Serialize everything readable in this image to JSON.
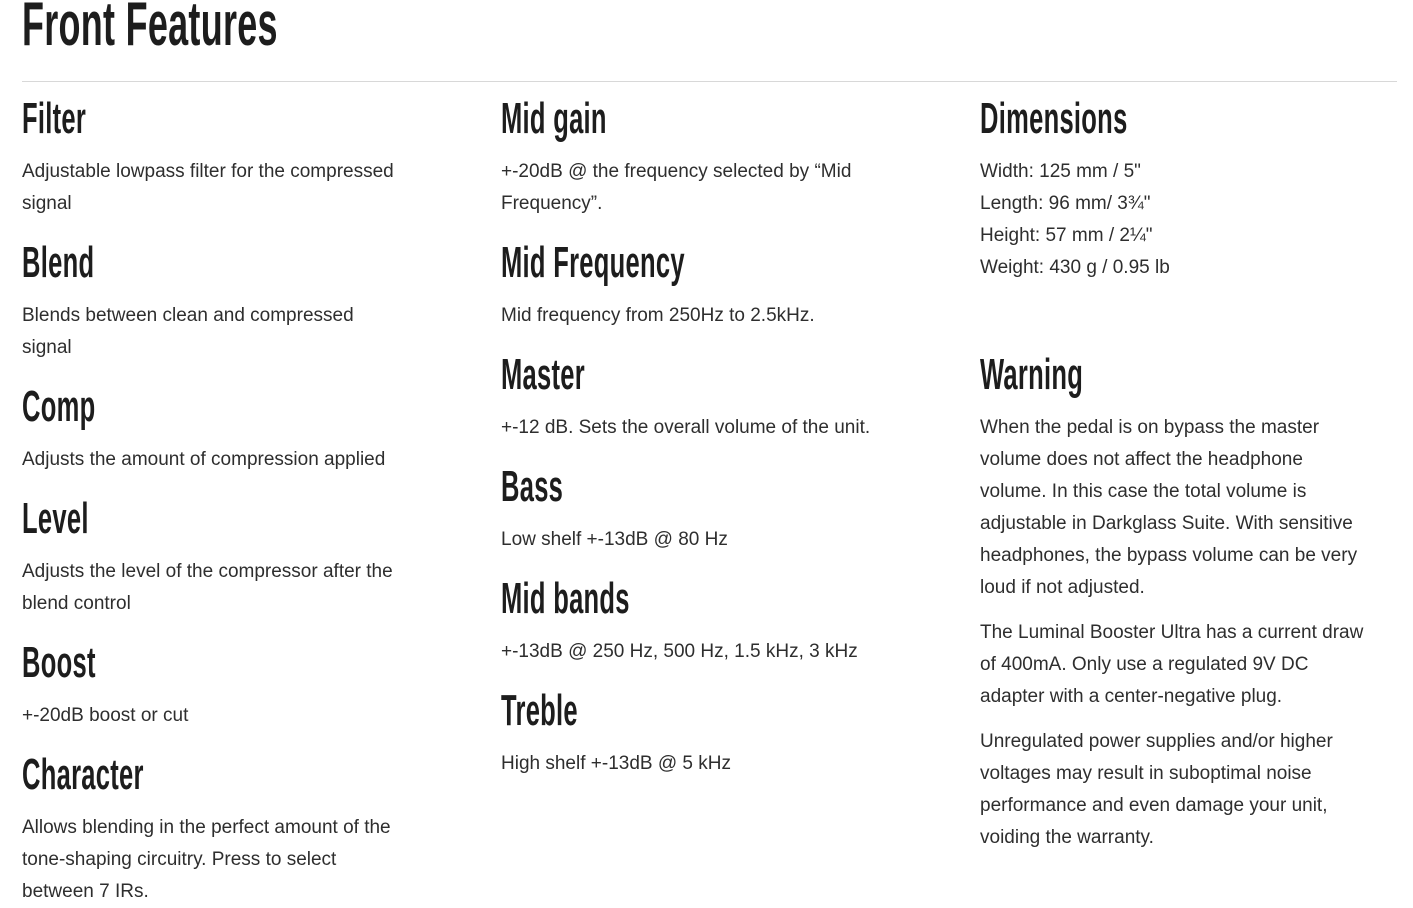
{
  "page": {
    "title": "Front Features"
  },
  "colors": {
    "heading": "#1d1d1d",
    "body": "#2e2e2e",
    "divider": "#d8d8d8",
    "background": "#ffffff"
  },
  "columns": [
    {
      "sections": [
        {
          "heading": "Filter",
          "paragraphs": [
            [
              "Adjustable lowpass filter for the compressed",
              "signal"
            ]
          ]
        },
        {
          "heading": "Blend",
          "paragraphs": [
            [
              "Blends between clean and compressed",
              "signal"
            ]
          ]
        },
        {
          "heading": "Comp",
          "paragraphs": [
            [
              "Adjusts the amount of compression applied"
            ]
          ]
        },
        {
          "heading": "Level",
          "paragraphs": [
            [
              "Adjusts the level of the compressor after the",
              "blend control"
            ]
          ]
        },
        {
          "heading": "Boost",
          "paragraphs": [
            [
              "+-20dB boost or cut"
            ]
          ]
        },
        {
          "heading": "Character",
          "paragraphs": [
            [
              "Allows blending in the perfect amount of the",
              "tone-shaping circuitry. Press to select",
              "between 7 IRs."
            ]
          ]
        }
      ]
    },
    {
      "sections": [
        {
          "heading": "Mid gain",
          "paragraphs": [
            [
              "+-20dB @ the frequency selected by “Mid",
              "Frequency”."
            ]
          ]
        },
        {
          "heading": "Mid Frequency",
          "paragraphs": [
            [
              "Mid frequency from 250Hz to 2.5kHz."
            ]
          ]
        },
        {
          "heading": "Master",
          "paragraphs": [
            [
              "+-12 dB. Sets the overall volume of the unit."
            ]
          ]
        },
        {
          "heading": "Bass",
          "paragraphs": [
            [
              "Low shelf +-13dB @ 80 Hz"
            ]
          ]
        },
        {
          "heading": "Mid bands",
          "paragraphs": [
            [
              "+-13dB @ 250 Hz, 500 Hz, 1.5 kHz, 3 kHz"
            ]
          ]
        },
        {
          "heading": "Treble",
          "paragraphs": [
            [
              "High shelf +-13dB @ 5 kHz"
            ]
          ]
        }
      ]
    },
    {
      "sections": [
        {
          "heading": "Dimensions",
          "paragraphs": [
            [
              "Width: 125 mm / 5\"",
              "Length: 96 mm/ 3¾\"",
              "Height: 57 mm / 2¼\"",
              "Weight: 430 g / 0.95 lb"
            ]
          ]
        },
        {
          "heading": "Warning",
          "paragraphs": [
            [
              "When the pedal is on bypass the master",
              "volume does not affect the headphone",
              "volume. In this case the total volume is",
              "adjustable in Darkglass Suite. With sensitive",
              "headphones, the bypass volume can be very",
              "loud if not adjusted."
            ],
            [
              "The Luminal Booster Ultra has a current draw",
              "of 400mA. Only use a regulated 9V DC",
              "adapter with a center-negative plug."
            ],
            [
              "Unregulated power supplies and/or higher",
              "voltages may result in suboptimal noise",
              "performance and even damage your unit,",
              "voiding the warranty."
            ]
          ]
        }
      ]
    }
  ]
}
